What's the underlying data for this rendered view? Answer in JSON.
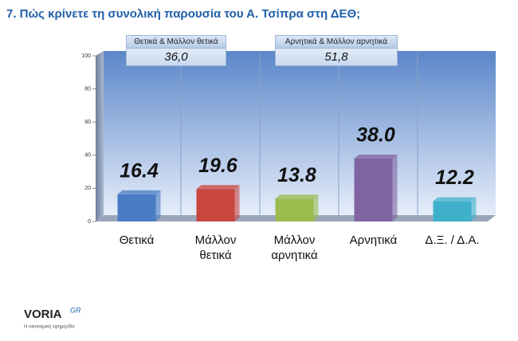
{
  "chart_data": {
    "type": "bar",
    "title": "7. Πώς κρίνετε τη συνολική παρουσία του Α. Τσίπρα στη ΔΕΘ;",
    "categories": [
      "Θετικά",
      "Μάλλον θετικά",
      "Μάλλον αρνητικά",
      "Αρνητικά",
      "Δ.Ξ. / Δ.Α."
    ],
    "values": [
      16.4,
      19.6,
      13.8,
      38.0,
      12.2
    ],
    "value_labels": [
      "16.4",
      "19.6",
      "13.8",
      "38.0",
      "12.2"
    ],
    "colors": [
      "#4a7cc4",
      "#c9463f",
      "#9bbb4f",
      "#8064a2",
      "#3fb0c9"
    ],
    "ylim": [
      0,
      100
    ],
    "yticks": [
      0,
      20,
      40,
      60,
      80,
      100
    ],
    "annotations": [
      {
        "title": "Θετικά & Μάλλον θετικά",
        "text": "36,0"
      },
      {
        "title": "Αρνητικά & Μάλλον αρνητικά",
        "text": "51,8"
      }
    ]
  },
  "logo": {
    "name": "VORIA",
    "suffix": "GR",
    "tagline": "Η οικονομική εφημερίδα"
  }
}
